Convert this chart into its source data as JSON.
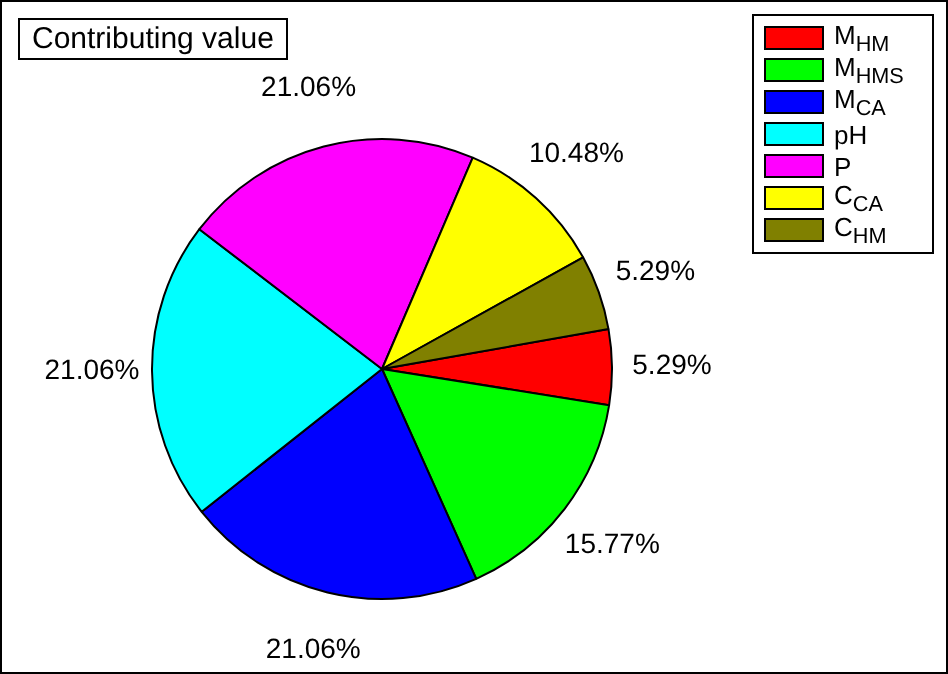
{
  "chart_data": {
    "type": "pie",
    "title": "Contributing value",
    "categories": [
      "M$_{HM}$",
      "M$_{HMS}$",
      "M$_{CA}$",
      "pH",
      "P",
      "C$_{CA}$",
      "C$_{HM}$"
    ],
    "values": [
      5.29,
      15.77,
      21.06,
      21.06,
      21.06,
      10.48,
      5.29
    ],
    "colors": [
      "#ff0000",
      "#00ff00",
      "#0000ff",
      "#00ffff",
      "#ff00ff",
      "#ffff00",
      "#808000"
    ],
    "value_labels": [
      "5.29%",
      "15.77%",
      "21.06%",
      "21.06%",
      "21.06%",
      "10.48%",
      "5.29%"
    ],
    "legend": "top right"
  }
}
